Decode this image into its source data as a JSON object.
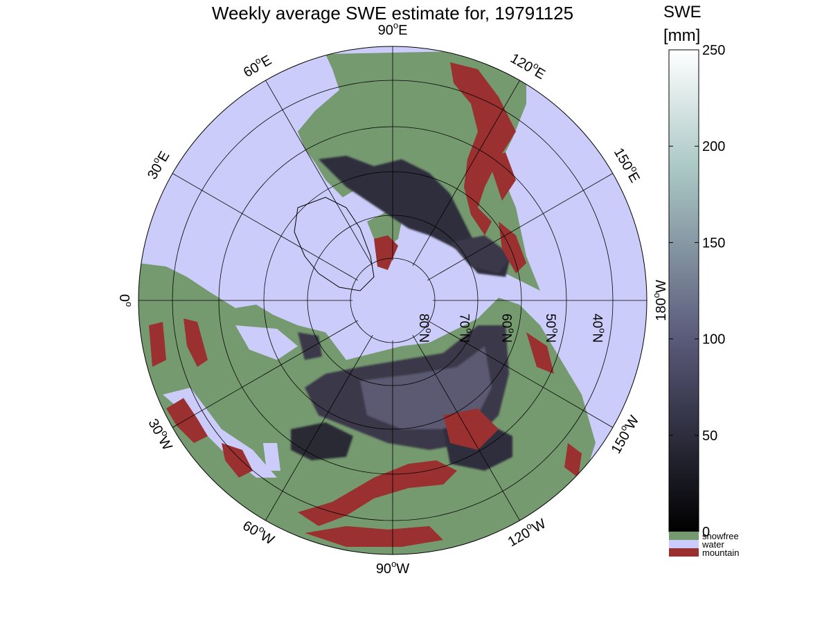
{
  "title": "Weekly average SWE estimate for, 19791125",
  "colorbar": {
    "label": "SWE",
    "unit": "[mm]",
    "ticks": [
      {
        "value": 0,
        "label": "0"
      },
      {
        "value": 50,
        "label": "50"
      },
      {
        "value": 100,
        "label": "100"
      },
      {
        "value": 150,
        "label": "150"
      },
      {
        "value": 200,
        "label": "200"
      },
      {
        "value": 250,
        "label": "250"
      }
    ],
    "range": [
      0,
      250
    ],
    "gradient_low": "#000000",
    "gradient_mid": "#5a5a7a",
    "gradient_high_mid": "#a9c7c4",
    "gradient_high": "#ffffff",
    "legend": [
      {
        "name": "snowfree",
        "color": "#769a6f"
      },
      {
        "name": "water",
        "color": "#ccccfa"
      },
      {
        "name": "mountain",
        "color": "#9a3030"
      }
    ]
  },
  "map": {
    "projection": "north polar stereographic",
    "ocean_color": "#ccccfa",
    "land_color": "#769a6f",
    "snow_color": "#2f2e3c",
    "mountain_color": "#9a3030",
    "longitude_labels": [
      {
        "lon": 0,
        "label": "0",
        "sup": "o"
      },
      {
        "lon": -30,
        "label": "30",
        "sup": "o",
        "suffix": "W"
      },
      {
        "lon": -60,
        "label": "60",
        "sup": "o",
        "suffix": "W"
      },
      {
        "lon": -90,
        "label": "90",
        "sup": "o",
        "suffix": "W"
      },
      {
        "lon": -120,
        "label": "120",
        "sup": "o",
        "suffix": "W"
      },
      {
        "lon": -150,
        "label": "150",
        "sup": "o",
        "suffix": "W"
      },
      {
        "lon": 180,
        "label": "180",
        "sup": "o",
        "suffix": "W"
      },
      {
        "lon": 150,
        "label": "150",
        "sup": "o",
        "suffix": "E"
      },
      {
        "lon": 120,
        "label": "120",
        "sup": "o",
        "suffix": "E"
      },
      {
        "lon": 90,
        "label": "90",
        "sup": "o",
        "suffix": "E"
      },
      {
        "lon": 60,
        "label": "60",
        "sup": "o",
        "suffix": "E"
      },
      {
        "lon": 30,
        "label": "30",
        "sup": "o",
        "suffix": "E"
      }
    ],
    "latitude_labels": [
      {
        "lat": 80,
        "label": "80",
        "sup": "o",
        "suffix": "N"
      },
      {
        "lat": 70,
        "label": "70",
        "sup": "o",
        "suffix": "N"
      },
      {
        "lat": 60,
        "label": "60",
        "sup": "o",
        "suffix": "N"
      },
      {
        "lat": 50,
        "label": "50",
        "sup": "o",
        "suffix": "N"
      },
      {
        "lat": 40,
        "label": "40",
        "sup": "o",
        "suffix": "N"
      }
    ]
  }
}
